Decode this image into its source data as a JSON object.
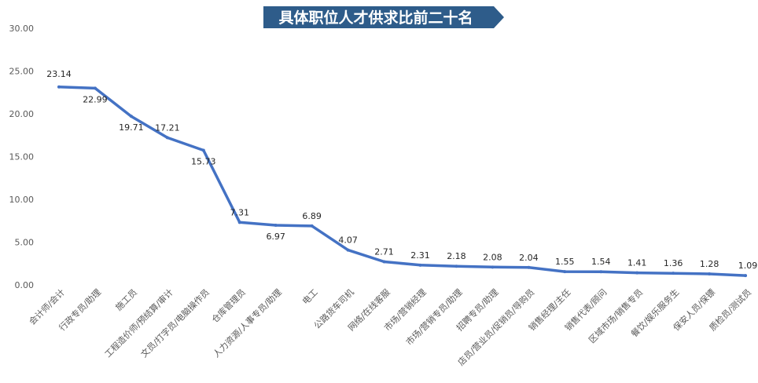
{
  "chart_data": {
    "type": "line",
    "title": "具体职位人才供求比前二十名",
    "categories": [
      "会计师/会计",
      "行政专员/助理",
      "施工员",
      "工程造价师/预结算/审计",
      "文员/打字员/电脑操作员",
      "仓库管理员",
      "人力资源/人事专员/助理",
      "电工",
      "公路货车司机",
      "网络/在线客服",
      "市场/营销经理",
      "市场/营销专员/助理",
      "招聘专员/助理",
      "店员/营业员/促销员/导购员",
      "销售经理/主任",
      "销售代表/顾问",
      "区域市场/销售专员",
      "餐饮/娱乐服务生",
      "保安人员/保镖",
      "质检员/测试员"
    ],
    "values": [
      23.14,
      22.99,
      19.71,
      17.21,
      15.73,
      7.31,
      6.97,
      6.89,
      4.07,
      2.71,
      2.31,
      2.18,
      2.08,
      2.04,
      1.55,
      1.54,
      1.41,
      1.36,
      1.28,
      1.09
    ],
    "value_labels": [
      "23.14",
      "22.99",
      "19.71",
      "17.21",
      "15.73",
      "7.31",
      "6.97",
      "6.89",
      "4.07",
      "2.71",
      "2.31",
      "2.18",
      "2.08",
      "2.04",
      "1.55",
      "1.54",
      "1.41",
      "1.36",
      "1.28",
      "1.09"
    ],
    "ylim": [
      0,
      30
    ],
    "yticks": [
      "0.00",
      "5.00",
      "10.00",
      "15.00",
      "20.00",
      "25.00",
      "30.00"
    ],
    "xlabel": "",
    "ylabel": "",
    "grid": false,
    "colors": {
      "line": "#4472C4",
      "title_banner": "#2E5C8A",
      "tick_text": "#595959"
    }
  }
}
